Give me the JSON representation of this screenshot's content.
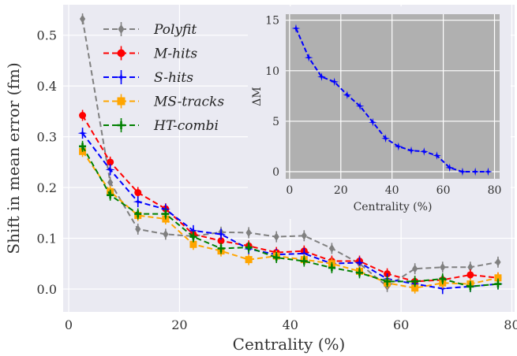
{
  "chart_data": [
    {
      "type": "line",
      "xlabel": "Centrality (%)",
      "ylabel": "Shift in mean error (fm)",
      "xlim": [
        -1,
        80.5
      ],
      "ylim": [
        -0.045,
        0.56
      ],
      "xticks": [
        0,
        20,
        40,
        60,
        80
      ],
      "yticks": [
        0.0,
        0.1,
        0.2,
        0.3,
        0.4,
        0.5
      ],
      "grid": true,
      "legend": "top-left",
      "x": [
        2.5,
        7.5,
        12.5,
        17.5,
        22.5,
        27.5,
        32.5,
        37.5,
        42.5,
        47.5,
        52.5,
        57.5,
        62.5,
        67.5,
        72.5,
        77.5
      ],
      "series": [
        {
          "name": "Polyfit",
          "color": "#808080",
          "marker": "diamond",
          "values": [
            0.532,
            0.21,
            0.118,
            0.108,
            0.104,
            0.112,
            0.111,
            0.103,
            0.105,
            0.08,
            0.05,
            0.005,
            0.04,
            0.043,
            0.043,
            0.053
          ]
        },
        {
          "name": "M-hits",
          "color": "#ff0000",
          "marker": "circle",
          "values": [
            0.342,
            0.25,
            0.19,
            0.158,
            0.108,
            0.095,
            0.085,
            0.072,
            0.075,
            0.055,
            0.055,
            0.03,
            0.015,
            0.018,
            0.028,
            0.022
          ]
        },
        {
          "name": "S-hits",
          "color": "#0000ff",
          "marker": "star",
          "values": [
            0.307,
            0.235,
            0.172,
            0.157,
            0.115,
            0.108,
            0.079,
            0.068,
            0.07,
            0.05,
            0.052,
            0.02,
            0.01,
            0.001,
            0.005,
            0.01
          ]
        },
        {
          "name": "MS-tracks",
          "color": "#ffa500",
          "marker": "square",
          "values": [
            0.271,
            0.192,
            0.145,
            0.138,
            0.088,
            0.075,
            0.058,
            0.065,
            0.058,
            0.05,
            0.035,
            0.012,
            0.002,
            0.012,
            0.01,
            0.022
          ]
        },
        {
          "name": "HT-combi",
          "color": "#008000",
          "marker": "plus",
          "values": [
            0.281,
            0.185,
            0.148,
            0.148,
            0.103,
            0.08,
            0.082,
            0.062,
            0.055,
            0.042,
            0.032,
            0.015,
            0.015,
            0.02,
            0.005,
            0.01
          ]
        }
      ]
    },
    {
      "type": "line",
      "xlabel": "Centrality (%)",
      "ylabel": "ΔM",
      "xlim": [
        -1.5,
        82
      ],
      "ylim": [
        -0.7,
        15.6
      ],
      "xticks": [
        0,
        20,
        40,
        60,
        80
      ],
      "yticks": [
        0,
        5,
        10,
        15
      ],
      "grid": true,
      "x": [
        2.5,
        7.5,
        12.5,
        17.5,
        22.5,
        27.5,
        32.5,
        37.5,
        42.5,
        47.5,
        52.5,
        57.5,
        62.5,
        67.5,
        72.5,
        77.5
      ],
      "series": [
        {
          "name": "",
          "color": "#0000ff",
          "marker": "star",
          "values": [
            14.2,
            11.3,
            9.4,
            8.9,
            7.6,
            6.5,
            4.9,
            3.3,
            2.5,
            2.1,
            2.0,
            1.6,
            0.4,
            0.0,
            0.0,
            0.0
          ]
        }
      ]
    }
  ]
}
